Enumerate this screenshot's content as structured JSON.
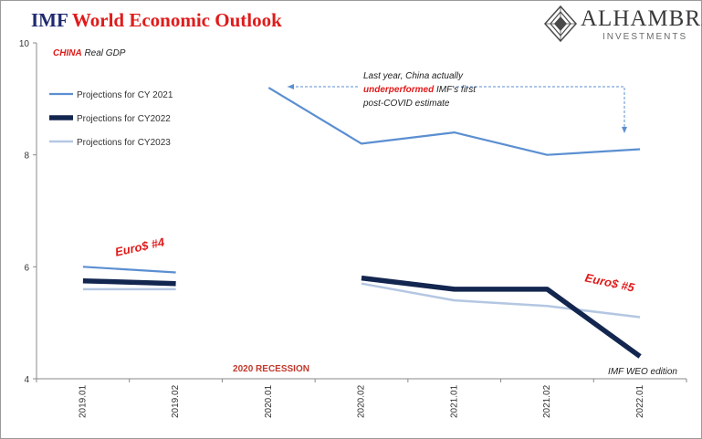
{
  "header": {
    "title_part1": "IMF",
    "title_part2": "World Economic Outlook"
  },
  "logo": {
    "name": "ALHAMBRA",
    "subtitle": "INVESTMENTS"
  },
  "chart_data": {
    "type": "line",
    "subtitle_red": "CHINA",
    "subtitle_rest": "Real GDP",
    "categories": [
      "2019.01",
      "2019.02",
      "2020.01",
      "2020.02",
      "2021.01",
      "2021.02",
      "2022.01"
    ],
    "ylim": [
      4,
      10
    ],
    "yticks": [
      4,
      6,
      8,
      10
    ],
    "grid": false,
    "legend_position": "top-left",
    "series": [
      {
        "name": "Projections for CY 2021",
        "color": "#5b8fd1",
        "width": 2.2,
        "values": [
          null,
          null,
          9.2,
          8.2,
          8.4,
          8.0,
          8.1
        ]
      },
      {
        "name": "Projections for CY2022",
        "color": "#13264f",
        "width": 5.5,
        "values": [
          null,
          null,
          null,
          5.8,
          5.6,
          5.6,
          4.4
        ]
      },
      {
        "name": "Projections for CY2023",
        "color": "#b4c7e2",
        "width": 2.5,
        "values": [
          null,
          null,
          null,
          5.7,
          5.4,
          5.3,
          5.1
        ]
      }
    ],
    "early_segments": [
      {
        "series": 0,
        "values": [
          6.0,
          5.9
        ]
      },
      {
        "series": 1,
        "values": [
          5.75,
          5.7
        ]
      },
      {
        "series": 2,
        "values": [
          5.6,
          5.6
        ]
      }
    ],
    "annotations": {
      "line1": "Last year, China actually",
      "line2_red": "underperformed",
      "line2_rest": "IMF's first",
      "line3": "post-COVID estimate",
      "euro4": "Euro$ #4",
      "euro5": "Euro$ #5",
      "recession": "2020 RECESSION",
      "source": "IMF WEO edition"
    }
  }
}
